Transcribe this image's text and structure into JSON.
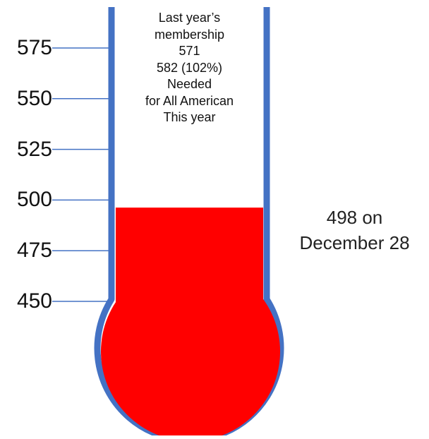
{
  "chart_data": {
    "type": "thermometer",
    "ticks": [
      575,
      550,
      525,
      500,
      475,
      450
    ],
    "tick_labels": [
      "575",
      "550",
      "525",
      "500",
      "475",
      "450"
    ],
    "value": 498,
    "previous_value": 571,
    "target_value": 582,
    "tube_text": [
      "Last year’s",
      "membership",
      "571",
      "582 (102%)",
      "Needed",
      "for All American",
      "This year"
    ],
    "value_annotation": [
      "498 on",
      "December 28"
    ],
    "colors": {
      "fill": "#ff0000",
      "outline": "#4472c4",
      "tick_line": "#4472c4"
    }
  }
}
